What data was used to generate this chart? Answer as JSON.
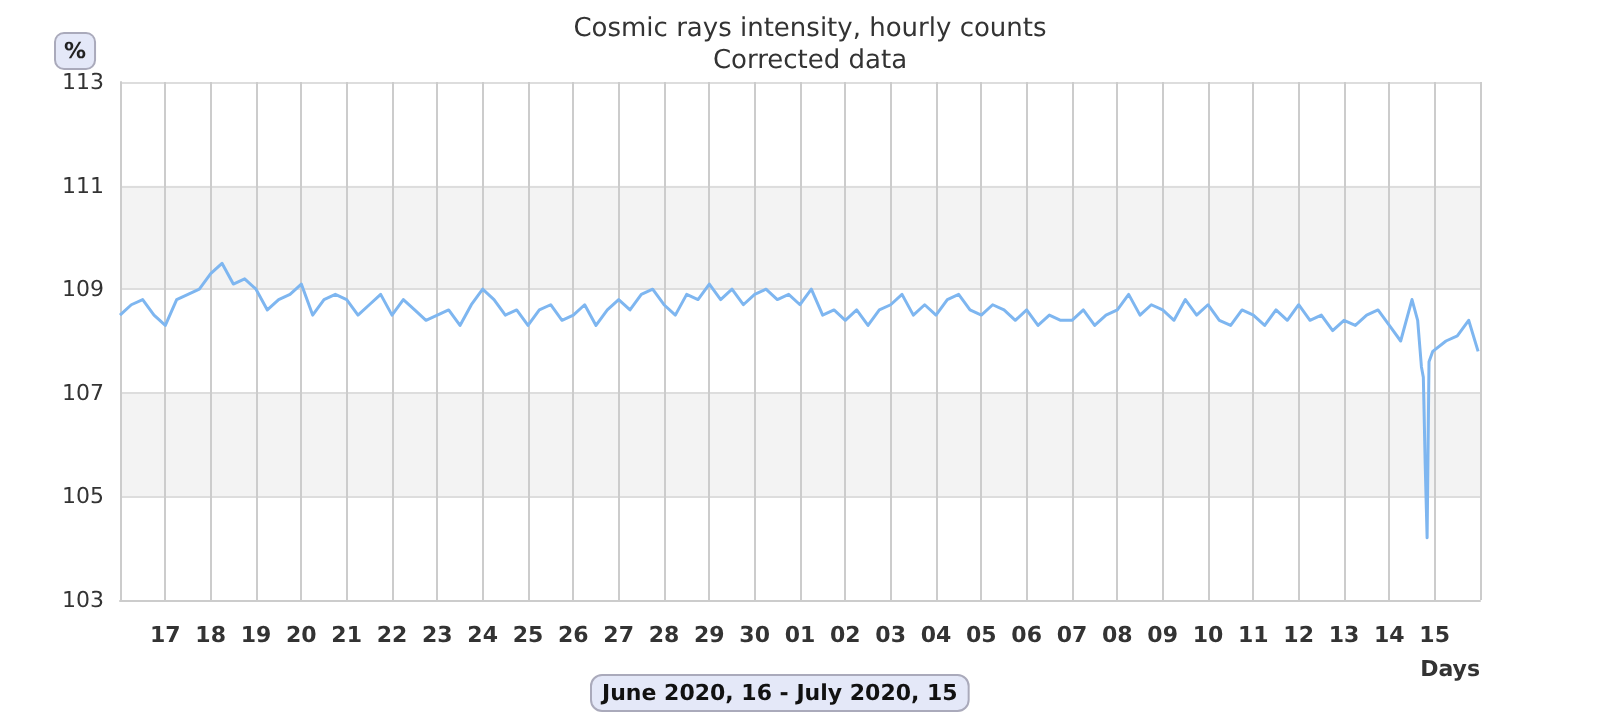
{
  "chart_data": {
    "type": "line",
    "title": "Cosmic rays intensity, hourly counts",
    "subtitle": "Corrected data",
    "ylabel": "%",
    "xlabel": "Days",
    "annotations": [
      "June 2020, 16 - July 2020, 15"
    ],
    "x": [
      "2020-06-16T00:00",
      "2020-06-16T06:00",
      "2020-06-16T12:00",
      "2020-06-16T18:00",
      "2020-06-17T00:00",
      "2020-06-17T06:00",
      "2020-06-17T12:00",
      "2020-06-17T18:00",
      "2020-06-18T00:00",
      "2020-06-18T06:00",
      "2020-06-18T12:00",
      "2020-06-18T18:00",
      "2020-06-19T00:00",
      "2020-06-19T06:00",
      "2020-06-19T12:00",
      "2020-06-19T18:00",
      "2020-06-20T00:00",
      "2020-06-20T06:00",
      "2020-06-20T12:00",
      "2020-06-20T18:00",
      "2020-06-21T00:00",
      "2020-06-21T06:00",
      "2020-06-21T12:00",
      "2020-06-21T18:00",
      "2020-06-22T00:00",
      "2020-06-22T06:00",
      "2020-06-22T12:00",
      "2020-06-22T18:00",
      "2020-06-23T00:00",
      "2020-06-23T06:00",
      "2020-06-23T12:00",
      "2020-06-23T18:00",
      "2020-06-24T00:00",
      "2020-06-24T06:00",
      "2020-06-24T12:00",
      "2020-06-24T18:00",
      "2020-06-25T00:00",
      "2020-06-25T06:00",
      "2020-06-25T12:00",
      "2020-06-25T18:00",
      "2020-06-26T00:00",
      "2020-06-26T06:00",
      "2020-06-26T12:00",
      "2020-06-26T18:00",
      "2020-06-27T00:00",
      "2020-06-27T06:00",
      "2020-06-27T12:00",
      "2020-06-27T18:00",
      "2020-06-28T00:00",
      "2020-06-28T06:00",
      "2020-06-28T12:00",
      "2020-06-28T18:00",
      "2020-06-29T00:00",
      "2020-06-29T06:00",
      "2020-06-29T12:00",
      "2020-06-29T18:00",
      "2020-06-30T00:00",
      "2020-06-30T06:00",
      "2020-06-30T12:00",
      "2020-06-30T18:00",
      "2020-07-01T00:00",
      "2020-07-01T06:00",
      "2020-07-01T12:00",
      "2020-07-01T18:00",
      "2020-07-02T00:00",
      "2020-07-02T06:00",
      "2020-07-02T12:00",
      "2020-07-02T18:00",
      "2020-07-03T00:00",
      "2020-07-03T06:00",
      "2020-07-03T12:00",
      "2020-07-03T18:00",
      "2020-07-04T00:00",
      "2020-07-04T06:00",
      "2020-07-04T12:00",
      "2020-07-04T18:00",
      "2020-07-05T00:00",
      "2020-07-05T06:00",
      "2020-07-05T12:00",
      "2020-07-05T18:00",
      "2020-07-06T00:00",
      "2020-07-06T06:00",
      "2020-07-06T12:00",
      "2020-07-06T18:00",
      "2020-07-07T00:00",
      "2020-07-07T06:00",
      "2020-07-07T12:00",
      "2020-07-07T18:00",
      "2020-07-08T00:00",
      "2020-07-08T06:00",
      "2020-07-08T12:00",
      "2020-07-08T18:00",
      "2020-07-09T00:00",
      "2020-07-09T06:00",
      "2020-07-09T12:00",
      "2020-07-09T18:00",
      "2020-07-10T00:00",
      "2020-07-10T06:00",
      "2020-07-10T12:00",
      "2020-07-10T18:00",
      "2020-07-11T00:00",
      "2020-07-11T06:00",
      "2020-07-11T12:00",
      "2020-07-11T18:00",
      "2020-07-12T00:00",
      "2020-07-12T06:00",
      "2020-07-12T12:00",
      "2020-07-12T18:00",
      "2020-07-13T00:00",
      "2020-07-13T06:00",
      "2020-07-13T12:00",
      "2020-07-13T18:00",
      "2020-07-14T00:00",
      "2020-07-14T06:00",
      "2020-07-14T12:00",
      "2020-07-14T15:00",
      "2020-07-14T17:00",
      "2020-07-14T18:00",
      "2020-07-14T19:00",
      "2020-07-14T20:00",
      "2020-07-14T21:00",
      "2020-07-14T23:00",
      "2020-07-15T06:00",
      "2020-07-15T12:00",
      "2020-07-15T18:00",
      "2020-07-15T23:00"
    ],
    "series": [
      {
        "color": "#7eb6f0",
        "values": [
          108.5,
          108.7,
          108.8,
          108.5,
          108.3,
          108.8,
          108.9,
          109.0,
          109.3,
          109.5,
          109.1,
          109.2,
          109.0,
          108.6,
          108.8,
          108.9,
          109.1,
          108.5,
          108.8,
          108.9,
          108.8,
          108.5,
          108.7,
          108.9,
          108.5,
          108.8,
          108.6,
          108.4,
          108.5,
          108.6,
          108.3,
          108.7,
          109.0,
          108.8,
          108.5,
          108.6,
          108.3,
          108.6,
          108.7,
          108.4,
          108.5,
          108.7,
          108.3,
          108.6,
          108.8,
          108.6,
          108.9,
          109.0,
          108.7,
          108.5,
          108.9,
          108.8,
          109.1,
          108.8,
          109.0,
          108.7,
          108.9,
          109.0,
          108.8,
          108.9,
          108.7,
          109.0,
          108.5,
          108.6,
          108.4,
          108.6,
          108.3,
          108.6,
          108.7,
          108.9,
          108.5,
          108.7,
          108.5,
          108.8,
          108.9,
          108.6,
          108.5,
          108.7,
          108.6,
          108.4,
          108.6,
          108.3,
          108.5,
          108.4,
          108.4,
          108.6,
          108.3,
          108.5,
          108.6,
          108.9,
          108.5,
          108.7,
          108.6,
          108.4,
          108.8,
          108.5,
          108.7,
          108.4,
          108.3,
          108.6,
          108.5,
          108.3,
          108.6,
          108.4,
          108.7,
          108.4,
          108.5,
          108.2,
          108.4,
          108.3,
          108.5,
          108.6,
          108.3,
          108.0,
          108.8,
          108.4,
          107.5,
          107.3,
          105.6,
          104.2,
          107.6,
          107.8,
          108.0,
          108.1,
          108.4,
          107.8
        ]
      }
    ],
    "xlim": [
      "2020-06-16",
      "2020-07-16"
    ],
    "xticks": [
      {
        "value": "2020-06-16",
        "label": null
      },
      {
        "value": "2020-06-17",
        "label": "17"
      },
      {
        "value": "2020-06-18",
        "label": "18"
      },
      {
        "value": "2020-06-19",
        "label": "19"
      },
      {
        "value": "2020-06-20",
        "label": "20"
      },
      {
        "value": "2020-06-21",
        "label": "21"
      },
      {
        "value": "2020-06-22",
        "label": "22"
      },
      {
        "value": "2020-06-23",
        "label": "23"
      },
      {
        "value": "2020-06-24",
        "label": "24"
      },
      {
        "value": "2020-06-25",
        "label": "25"
      },
      {
        "value": "2020-06-26",
        "label": "26"
      },
      {
        "value": "2020-06-27",
        "label": "27"
      },
      {
        "value": "2020-06-28",
        "label": "28"
      },
      {
        "value": "2020-06-29",
        "label": "29"
      },
      {
        "value": "2020-06-30",
        "label": "30"
      },
      {
        "value": "2020-07-01",
        "label": "01"
      },
      {
        "value": "2020-07-02",
        "label": "02"
      },
      {
        "value": "2020-07-03",
        "label": "03"
      },
      {
        "value": "2020-07-04",
        "label": "04"
      },
      {
        "value": "2020-07-05",
        "label": "05"
      },
      {
        "value": "2020-07-06",
        "label": "06"
      },
      {
        "value": "2020-07-07",
        "label": "07"
      },
      {
        "value": "2020-07-08",
        "label": "08"
      },
      {
        "value": "2020-07-09",
        "label": "09"
      },
      {
        "value": "2020-07-10",
        "label": "10"
      },
      {
        "value": "2020-07-11",
        "label": "11"
      },
      {
        "value": "2020-07-12",
        "label": "12"
      },
      {
        "value": "2020-07-13",
        "label": "13"
      },
      {
        "value": "2020-07-14",
        "label": "14"
      },
      {
        "value": "2020-07-15",
        "label": "15"
      },
      {
        "value": "2020-07-16",
        "label": null
      }
    ],
    "ylim": [
      103,
      113
    ],
    "yticks": [
      103,
      105,
      107,
      109,
      111,
      113
    ],
    "grid": true,
    "marker": "none",
    "line_style": "solid"
  }
}
